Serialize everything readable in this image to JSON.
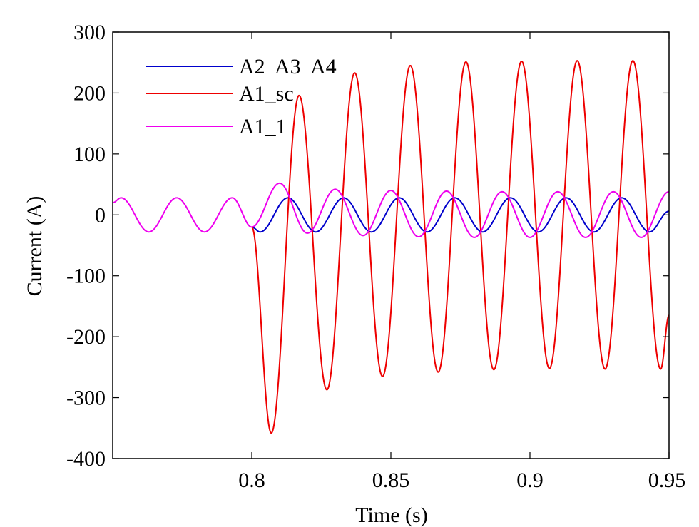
{
  "chart_data": {
    "type": "line",
    "xlabel": "Time (s)",
    "ylabel": "Current (A)",
    "xlim": [
      0.75,
      0.95
    ],
    "ylim": [
      -400,
      300
    ],
    "xticks": [
      0.8,
      0.85,
      0.9,
      0.95
    ],
    "xtick_labels": [
      "0.8",
      "0.85",
      "0.9",
      "0.95"
    ],
    "yticks": [
      300,
      200,
      100,
      0,
      -100,
      -200,
      -300,
      -400
    ],
    "ytick_labels": [
      "300",
      "200",
      "100",
      "0",
      "-100",
      "-200",
      "-300",
      "-400"
    ],
    "grid": false,
    "legend_position": "top-left",
    "series": [
      {
        "name": "A2  A3  A4",
        "color": "#0000cc",
        "x_range": [
          0.8,
          0.95
        ],
        "x": [
          0.8,
          0.803,
          0.813,
          0.823,
          0.833,
          0.843,
          0.853,
          0.863,
          0.873,
          0.883,
          0.893,
          0.903,
          0.913,
          0.923,
          0.933,
          0.943,
          0.95
        ],
        "values": [
          -20,
          -28,
          28,
          -28,
          28,
          -28,
          28,
          -28,
          28,
          -28,
          28,
          -28,
          28,
          -28,
          28,
          -28,
          6
        ]
      },
      {
        "name": "A1_sc",
        "color": "#ee0000",
        "x_range": [
          0.8,
          0.95
        ],
        "x": [
          0.8,
          0.807,
          0.817,
          0.827,
          0.837,
          0.847,
          0.857,
          0.867,
          0.877,
          0.887,
          0.897,
          0.907,
          0.917,
          0.927,
          0.937,
          0.947,
          0.95
        ],
        "values": [
          -20,
          -358,
          196,
          -287,
          233,
          -265,
          245,
          -258,
          251,
          -254,
          252,
          -252,
          253,
          -253,
          253,
          -253,
          -165
        ]
      },
      {
        "name": "A1_1",
        "color": "#ee00ee",
        "x_range": [
          0.75,
          0.95
        ],
        "x": [
          0.75,
          0.753,
          0.763,
          0.773,
          0.783,
          0.793,
          0.8,
          0.81,
          0.82,
          0.83,
          0.84,
          0.85,
          0.86,
          0.87,
          0.88,
          0.89,
          0.9,
          0.91,
          0.92,
          0.93,
          0.94,
          0.95
        ],
        "values": [
          20,
          28,
          -28,
          28,
          -28,
          28,
          -20,
          52,
          -30,
          42,
          -34,
          40,
          -36,
          39,
          -37,
          38,
          -37,
          38,
          -37,
          38,
          -37,
          38
        ]
      }
    ]
  }
}
